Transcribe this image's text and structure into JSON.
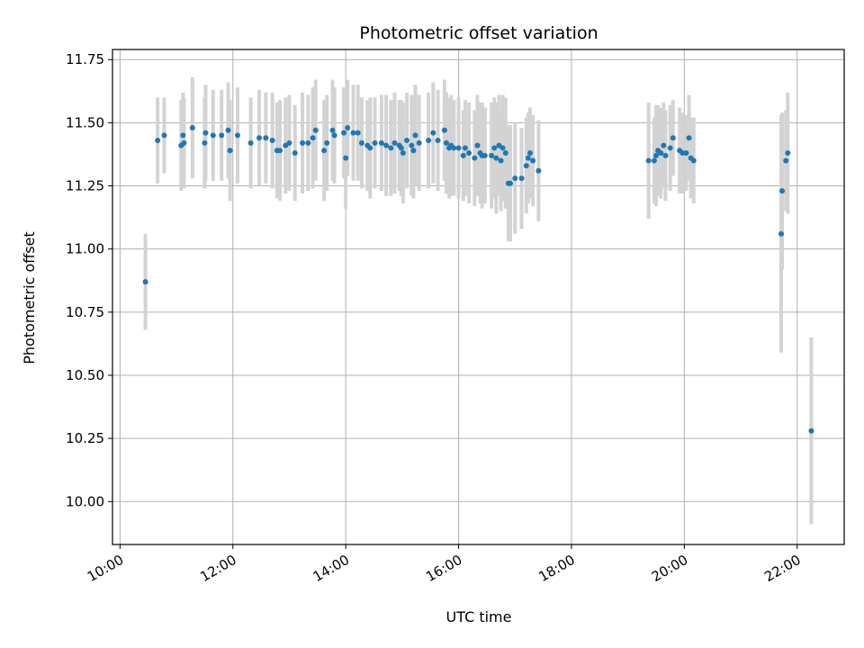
{
  "chart_data": {
    "type": "scatter",
    "title": "Photometric offset variation",
    "xlabel": "UTC time",
    "ylabel": "Photometric offset",
    "xlim": [
      "09:52",
      "22:50"
    ],
    "ylim": [
      9.83,
      11.79
    ],
    "grid": true,
    "x_ticks": [
      "10:00",
      "12:00",
      "14:00",
      "16:00",
      "18:00",
      "20:00",
      "22:00"
    ],
    "y_ticks": [
      "10.00",
      "10.25",
      "10.50",
      "10.75",
      "11.00",
      "11.25",
      "11.50",
      "11.75"
    ],
    "colors": {
      "point": "#1f77b4",
      "errorbar": "#d3d3d3",
      "grid": "#b0b0b0"
    },
    "series": [
      {
        "x": [
          "10:27",
          "10:40",
          "10:47",
          "11:05",
          "11:07",
          "11:08",
          "11:17",
          "11:30",
          "11:31",
          "11:39",
          "11:48",
          "11:55",
          "11:57",
          "12:05",
          "12:19",
          "12:28",
          "12:35",
          "12:42",
          "12:47",
          "12:50",
          "12:56",
          "13:00",
          "13:06",
          "13:14",
          "13:20",
          "13:25",
          "13:28",
          "13:37",
          "13:40",
          "13:46",
          "13:48",
          "13:58",
          "14:00",
          "14:02",
          "14:08",
          "14:13",
          "14:17",
          "14:23",
          "14:26",
          "14:31",
          "14:38",
          "14:43",
          "14:48",
          "14:52",
          "14:57",
          "14:59",
          "15:01",
          "15:05",
          "15:10",
          "15:12",
          "15:14",
          "15:18",
          "15:28",
          "15:33",
          "15:38",
          "15:45",
          "15:47",
          "15:50",
          "15:52",
          "15:55",
          "16:00",
          "16:05",
          "16:07",
          "16:11",
          "16:17",
          "16:20",
          "16:23",
          "16:25",
          "16:28",
          "16:35",
          "16:38",
          "16:40",
          "16:43",
          "16:45",
          "16:47",
          "16:50",
          "16:53",
          "16:55",
          "17:00",
          "17:07",
          "17:12",
          "17:14",
          "17:16",
          "17:19",
          "17:25",
          "19:22",
          "19:28",
          "19:30",
          "19:32",
          "19:35",
          "19:38",
          "19:40",
          "19:45",
          "19:48",
          "19:55",
          "19:58",
          "20:02",
          "20:05",
          "20:07",
          "20:10",
          "21:43",
          "21:44",
          "21:48",
          "21:50",
          "22:15"
        ],
        "y": [
          10.87,
          11.43,
          11.45,
          11.41,
          11.45,
          11.42,
          11.48,
          11.42,
          11.46,
          11.45,
          11.45,
          11.47,
          11.39,
          11.45,
          11.42,
          11.44,
          11.44,
          11.43,
          11.39,
          11.39,
          11.41,
          11.42,
          11.38,
          11.42,
          11.42,
          11.44,
          11.47,
          11.39,
          11.42,
          11.47,
          11.45,
          11.46,
          11.36,
          11.48,
          11.46,
          11.46,
          11.42,
          11.41,
          11.4,
          11.42,
          11.42,
          11.41,
          11.4,
          11.42,
          11.41,
          11.4,
          11.38,
          11.43,
          11.41,
          11.39,
          11.45,
          11.42,
          11.43,
          11.46,
          11.43,
          11.47,
          11.42,
          11.4,
          11.41,
          11.4,
          11.4,
          11.37,
          11.4,
          11.38,
          11.36,
          11.41,
          11.38,
          11.37,
          11.37,
          11.37,
          11.4,
          11.36,
          11.41,
          11.35,
          11.4,
          11.38,
          11.26,
          11.26,
          11.28,
          11.28,
          11.33,
          11.36,
          11.38,
          11.35,
          11.31,
          11.35,
          11.35,
          11.37,
          11.39,
          11.38,
          11.41,
          11.37,
          11.4,
          11.44,
          11.39,
          11.38,
          11.38,
          11.44,
          11.36,
          11.35,
          11.06,
          11.23,
          11.35,
          11.38,
          10.28
        ],
        "err": [
          0.19,
          0.17,
          0.15,
          0.18,
          0.17,
          0.18,
          0.2,
          0.18,
          0.19,
          0.18,
          0.18,
          0.19,
          0.2,
          0.19,
          0.18,
          0.19,
          0.18,
          0.19,
          0.19,
          0.2,
          0.19,
          0.19,
          0.19,
          0.2,
          0.19,
          0.2,
          0.2,
          0.2,
          0.19,
          0.2,
          0.19,
          0.18,
          0.2,
          0.19,
          0.19,
          0.19,
          0.18,
          0.18,
          0.2,
          0.18,
          0.19,
          0.2,
          0.19,
          0.2,
          0.18,
          0.19,
          0.2,
          0.19,
          0.2,
          0.19,
          0.2,
          0.19,
          0.19,
          0.2,
          0.2,
          0.2,
          0.2,
          0.2,
          0.2,
          0.19,
          0.2,
          0.18,
          0.19,
          0.2,
          0.19,
          0.2,
          0.2,
          0.21,
          0.19,
          0.21,
          0.2,
          0.22,
          0.2,
          0.2,
          0.21,
          0.22,
          0.23,
          0.23,
          0.22,
          0.2,
          0.19,
          0.18,
          0.18,
          0.18,
          0.2,
          0.23,
          0.17,
          0.2,
          0.18,
          0.18,
          0.17,
          0.18,
          0.17,
          0.15,
          0.17,
          0.16,
          0.15,
          0.17,
          0.16,
          0.17,
          0.47,
          0.31,
          0.2,
          0.24,
          0.37
        ]
      }
    ]
  }
}
